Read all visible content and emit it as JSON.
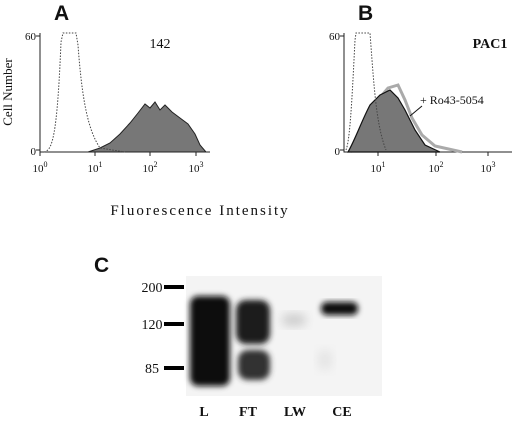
{
  "panels": [
    {
      "label": "A",
      "y_axis_title": "Cell Number",
      "y_ticks": [
        "60",
        "0"
      ],
      "x_ticks": [
        {
          "base": "10",
          "exp": "0"
        },
        {
          "base": "10",
          "exp": "1"
        },
        {
          "base": "10",
          "exp": "2"
        },
        {
          "base": "10",
          "exp": "3"
        }
      ],
      "annotations": [
        "142"
      ]
    },
    {
      "label": "B",
      "y_ticks": [
        "60",
        "0"
      ],
      "x_ticks": [
        {
          "base": "10",
          "exp": "1"
        },
        {
          "base": "10",
          "exp": "2"
        },
        {
          "base": "10",
          "exp": "3"
        }
      ],
      "annotations": [
        "PAC1",
        "+ Ro43-5054"
      ]
    }
  ],
  "x_axis_title": "Fluorescence Intensity",
  "blot": {
    "label": "C",
    "markers": [
      "200",
      "120",
      "85"
    ],
    "lanes": [
      "L",
      "FT",
      "LW",
      "CE"
    ]
  }
}
